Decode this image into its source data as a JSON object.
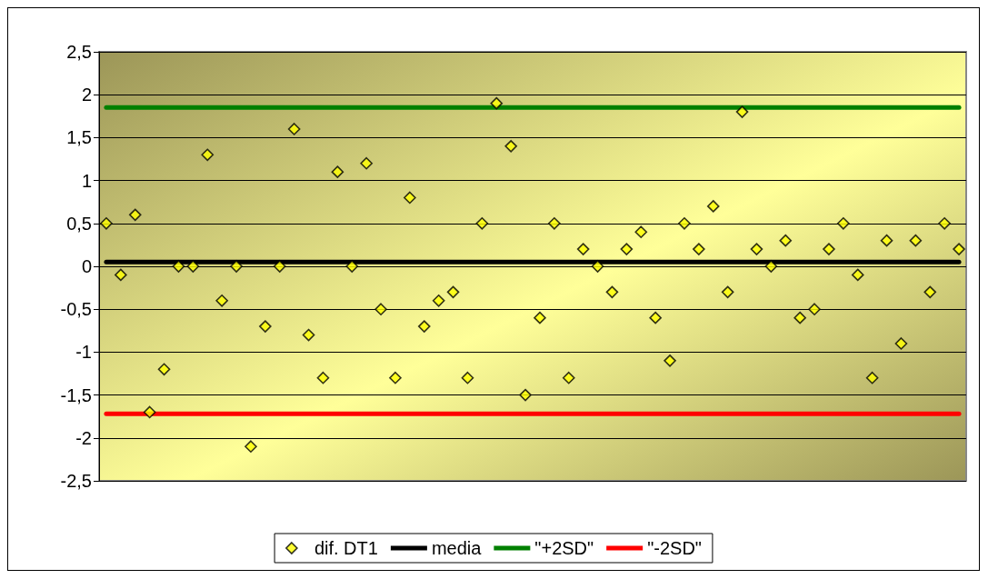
{
  "chart_data": {
    "type": "scatter",
    "categories": [
      null,
      null,
      null,
      null,
      null,
      null,
      null,
      null,
      null,
      null,
      null,
      null,
      null,
      null,
      null,
      null,
      null,
      null,
      null,
      null,
      null,
      null,
      null,
      null,
      null,
      null,
      null,
      null,
      null,
      null,
      null,
      null,
      null,
      null,
      null,
      null,
      null,
      null,
      null,
      null,
      null,
      null,
      null,
      null,
      null,
      null,
      null,
      null,
      null,
      null,
      null,
      null,
      null,
      null,
      null,
      null,
      null,
      null,
      null,
      null
    ],
    "series": [
      {
        "name": "dif. DT1",
        "marker": "diamond",
        "color": "#ffff00",
        "values": [
          0.5,
          -0.1,
          0.6,
          -1.7,
          -1.2,
          0,
          0,
          1.3,
          -0.4,
          0,
          -2.1,
          -0.7,
          0,
          1.6,
          -0.8,
          -1.3,
          1.1,
          0,
          1.2,
          -0.5,
          -1.3,
          0.8,
          -0.7,
          -0.4,
          -0.3,
          -1.3,
          0.5,
          1.9,
          1.4,
          -1.5,
          -0.6,
          0.5,
          -1.3,
          0.2,
          0,
          -0.3,
          0.2,
          0.4,
          -0.6,
          -1.1,
          0.5,
          0.2,
          0.7,
          -0.3,
          1.8,
          0.2,
          0,
          0.3,
          -0.6,
          -0.5,
          0.2,
          0.5,
          -0.1,
          -1.3,
          0.3,
          -0.9,
          0.3,
          -0.3,
          0.5,
          0.2
        ]
      },
      {
        "name": "media",
        "type": "line",
        "marker": "none",
        "color": "#000000",
        "values": [
          0.05,
          0.05,
          0.05,
          0.05,
          0.05,
          0.05,
          0.05,
          0.05,
          0.05,
          0.05,
          0.05,
          0.05,
          0.05,
          0.05,
          0.05,
          0.05,
          0.05,
          0.05,
          0.05,
          0.05,
          0.05,
          0.05,
          0.05,
          0.05,
          0.05,
          0.05,
          0.05,
          0.05,
          0.05,
          0.05,
          0.05,
          0.05,
          0.05,
          0.05,
          0.05,
          0.05,
          0.05,
          0.05,
          0.05,
          0.05,
          0.05,
          0.05,
          0.05,
          0.05,
          0.05,
          0.05,
          0.05,
          0.05,
          0.05,
          0.05,
          0.05,
          0.05,
          0.05,
          0.05,
          0.05,
          0.05,
          0.05,
          0.05,
          0.05,
          0.05
        ]
      },
      {
        "name": "\"+2SD\"",
        "type": "line",
        "marker": "none",
        "color": "#008000",
        "values": [
          1.85,
          1.85,
          1.85,
          1.85,
          1.85,
          1.85,
          1.85,
          1.85,
          1.85,
          1.85,
          1.85,
          1.85,
          1.85,
          1.85,
          1.85,
          1.85,
          1.85,
          1.85,
          1.85,
          1.85,
          1.85,
          1.85,
          1.85,
          1.85,
          1.85,
          1.85,
          1.85,
          1.85,
          1.85,
          1.85,
          1.85,
          1.85,
          1.85,
          1.85,
          1.85,
          1.85,
          1.85,
          1.85,
          1.85,
          1.85,
          1.85,
          1.85,
          1.85,
          1.85,
          1.85,
          1.85,
          1.85,
          1.85,
          1.85,
          1.85,
          1.85,
          1.85,
          1.85,
          1.85,
          1.85,
          1.85,
          1.85,
          1.85,
          1.85,
          1.85
        ]
      },
      {
        "name": "\"-2SD\"",
        "type": "line",
        "marker": "none",
        "color": "#ff0000",
        "values": [
          -1.72,
          -1.72,
          -1.72,
          -1.72,
          -1.72,
          -1.72,
          -1.72,
          -1.72,
          -1.72,
          -1.72,
          -1.72,
          -1.72,
          -1.72,
          -1.72,
          -1.72,
          -1.72,
          -1.72,
          -1.72,
          -1.72,
          -1.72,
          -1.72,
          -1.72,
          -1.72,
          -1.72,
          -1.72,
          -1.72,
          -1.72,
          -1.72,
          -1.72,
          -1.72,
          -1.72,
          -1.72,
          -1.72,
          -1.72,
          -1.72,
          -1.72,
          -1.72,
          -1.72,
          -1.72,
          -1.72,
          -1.72,
          -1.72,
          -1.72,
          -1.72,
          -1.72,
          -1.72,
          -1.72,
          -1.72,
          -1.72,
          -1.72,
          -1.72,
          -1.72,
          -1.72,
          -1.72,
          -1.72,
          -1.72,
          -1.72,
          -1.72,
          -1.72,
          -1.72
        ]
      }
    ],
    "ylim": [
      -2.5,
      2.5
    ],
    "yticks": [
      {
        "value": -2.5,
        "label": "-2,5"
      },
      -2,
      {
        "value": -1.5,
        "label": "-1,5"
      },
      -1,
      {
        "value": -0.5,
        "label": "-0,5"
      },
      0,
      {
        "value": 0.5,
        "label": "0,5"
      },
      1,
      {
        "value": 1.5,
        "label": "1,5"
      },
      2,
      {
        "value": 2.5,
        "label": "2,5"
      }
    ],
    "grid": "y",
    "legend": "bottom",
    "line_style": "solid",
    "tick_labels": "y"
  }
}
